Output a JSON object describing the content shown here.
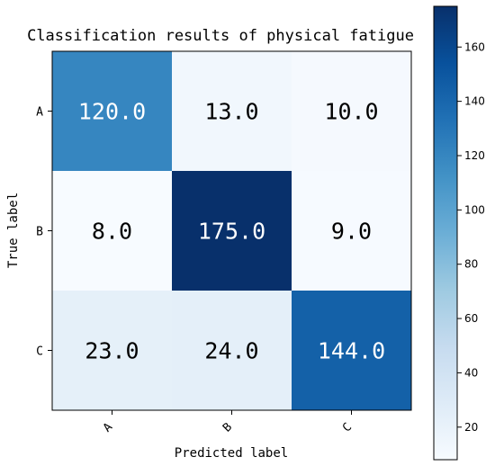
{
  "chart_data": {
    "type": "heatmap",
    "title": "Classification results of physical fatigue",
    "xlabel": "Predicted label",
    "ylabel": "True label",
    "x_categories": [
      "A",
      "B",
      "C"
    ],
    "y_categories": [
      "A",
      "B",
      "C"
    ],
    "values": [
      [
        120.0,
        13.0,
        10.0
      ],
      [
        8.0,
        175.0,
        9.0
      ],
      [
        23.0,
        24.0,
        144.0
      ]
    ],
    "value_labels": [
      [
        "120.0",
        "13.0",
        "10.0"
      ],
      [
        "8.0",
        "175.0",
        "9.0"
      ],
      [
        "23.0",
        "24.0",
        "144.0"
      ]
    ],
    "colormap": "Blues",
    "color_range": [
      8,
      175
    ],
    "colorbar_ticks": [
      20,
      40,
      60,
      80,
      100,
      120,
      140,
      160
    ],
    "grid": false
  }
}
